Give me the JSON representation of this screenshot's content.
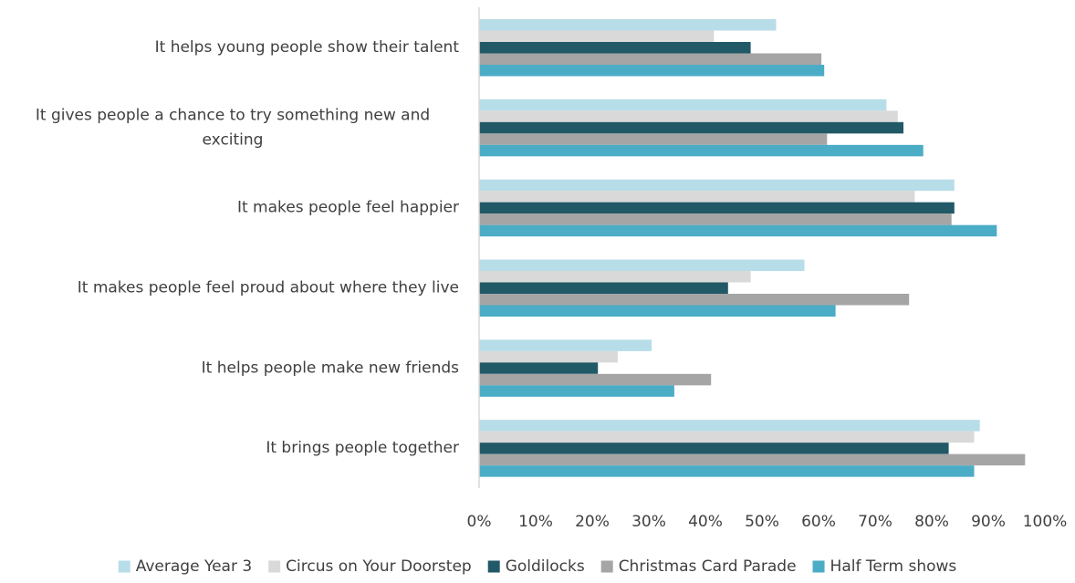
{
  "chart_data": {
    "type": "bar",
    "orientation": "horizontal",
    "categories": [
      "It helps young people show their talent",
      "It gives people a chance to try something new and exciting",
      "It makes people feel happier",
      "It makes people feel proud about where they live",
      "It helps people make new friends",
      "It brings people together"
    ],
    "category_lines": [
      [
        "It helps young people show their talent"
      ],
      [
        "It gives people a chance to try something new and",
        "exciting"
      ],
      [
        "It makes people feel happier"
      ],
      [
        "It makes people feel proud about where they live"
      ],
      [
        "It helps people make new friends"
      ],
      [
        "It brings people together"
      ]
    ],
    "series": [
      {
        "name": "Average Year 3",
        "color": "#b7dde8",
        "values": [
          52.5,
          72,
          84,
          57.5,
          30.5,
          88.5
        ]
      },
      {
        "name": "Circus on Your Doorstep",
        "color": "#d9d9d9",
        "values": [
          41.5,
          74,
          77,
          48,
          24.5,
          87.5
        ]
      },
      {
        "name": "Goldilocks",
        "color": "#215967",
        "values": [
          48,
          75,
          84,
          44,
          21,
          83
        ]
      },
      {
        "name": "Christmas Card Parade",
        "color": "#a5a5a5",
        "values": [
          60.5,
          61.5,
          83.5,
          76,
          41,
          96.5
        ]
      },
      {
        "name": "Half Term shows",
        "color": "#4bacc6",
        "values": [
          61,
          78.5,
          91.5,
          63,
          34.5,
          87.5
        ]
      }
    ],
    "xlim": [
      0,
      100
    ],
    "x_ticks": [
      "0%",
      "10%",
      "20%",
      "30%",
      "40%",
      "50%",
      "60%",
      "70%",
      "80%",
      "90%",
      "100%"
    ],
    "grid": false,
    "legend_position": "bottom",
    "title": "",
    "xlabel": "",
    "ylabel": ""
  }
}
